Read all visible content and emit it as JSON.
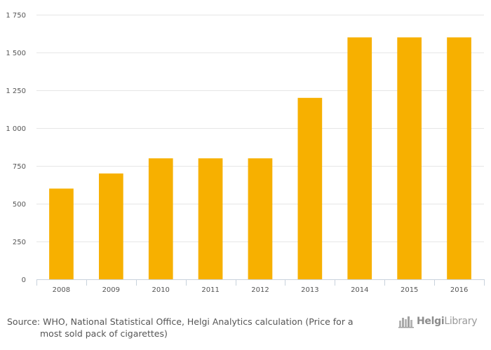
{
  "chart_data": {
    "type": "bar",
    "categories": [
      "2008",
      "2009",
      "2010",
      "2011",
      "2012",
      "2013",
      "2014",
      "2015",
      "2016"
    ],
    "values": [
      600,
      700,
      800,
      800,
      800,
      1200,
      1600,
      1600,
      1600
    ],
    "ylim": [
      0,
      1750
    ],
    "yticks": [
      0,
      250,
      500,
      750,
      1000,
      1250,
      1500,
      1750
    ],
    "ytick_labels": [
      "0",
      "250",
      "500",
      "750",
      "1 000",
      "1 250",
      "1 500",
      "1 750"
    ],
    "grid": true,
    "bar_color": "#f7b000"
  },
  "source": {
    "line1": "Source: WHO, National Statistical Office, Helgi Analytics calculation (Price for a",
    "line2": "most sold pack of cigarettes)"
  },
  "logo": {
    "part1": "Helgi",
    "part2": "Library",
    "icon": "helgi-library-logo-icon"
  }
}
